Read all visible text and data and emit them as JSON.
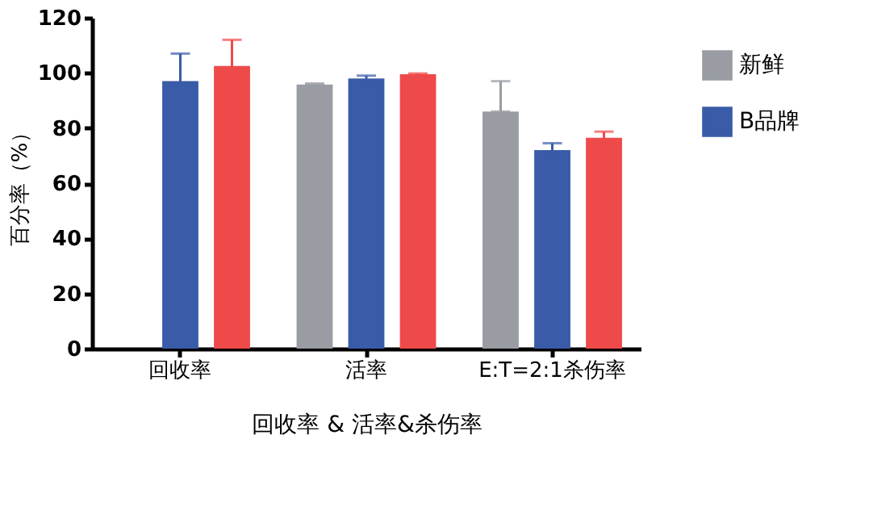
{
  "chart_data": {
    "type": "bar",
    "xlabel": "回收率 & 活率&杀伤率",
    "ylabel": "百分率（%）",
    "categories": [
      "回收率",
      "活率",
      "E:T=2:1杀伤率"
    ],
    "series": [
      {
        "name": "新鲜",
        "color": "#999ca3",
        "values": [
          null,
          95.8,
          86
        ],
        "errors": [
          null,
          [
            95.8,
            96.2
          ],
          [
            86,
            97
          ]
        ]
      },
      {
        "name": "B品牌",
        "color": "#3a5ba8",
        "values": [
          97,
          98,
          72
        ],
        "errors": [
          10,
          1,
          2.5
        ]
      },
      {
        "color": "#ee4a4a",
        "values": [
          102.5,
          99.5,
          76.5
        ],
        "errors": [
          9.5,
          0.3,
          2.2
        ]
      }
    ],
    "ylim": [
      0,
      120
    ],
    "yticks": [
      0,
      20,
      40,
      60,
      80,
      100,
      120
    ],
    "grid": false,
    "legend": "right"
  }
}
